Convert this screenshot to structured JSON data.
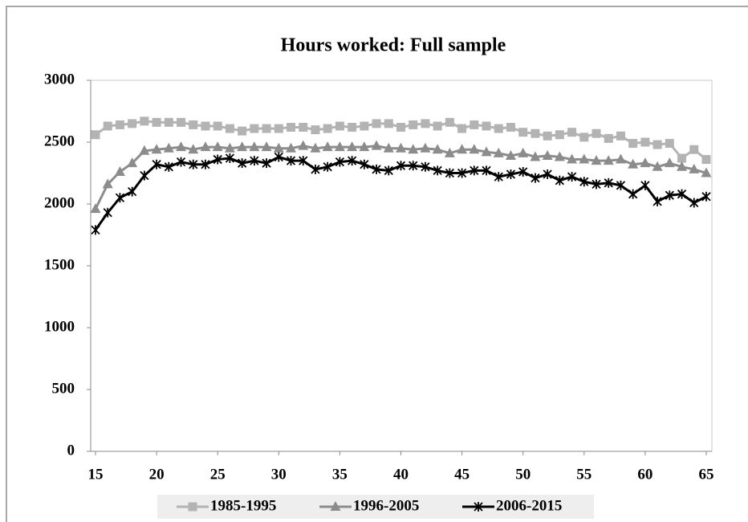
{
  "chart_data": {
    "type": "line",
    "title": "Hours worked:  Full sample",
    "x": [
      15,
      16,
      17,
      18,
      19,
      20,
      21,
      22,
      23,
      24,
      25,
      26,
      27,
      28,
      29,
      30,
      31,
      32,
      33,
      34,
      35,
      36,
      37,
      38,
      39,
      40,
      41,
      42,
      43,
      44,
      45,
      46,
      47,
      48,
      49,
      50,
      51,
      52,
      53,
      54,
      55,
      56,
      57,
      58,
      59,
      60,
      61,
      62,
      63,
      64,
      65
    ],
    "xlim": [
      15,
      65
    ],
    "xticks": [
      15,
      20,
      25,
      30,
      35,
      40,
      45,
      50,
      55,
      60,
      65
    ],
    "ylim": [
      0,
      3000
    ],
    "yticks": [
      0,
      500,
      1000,
      1500,
      2000,
      2500,
      3000
    ],
    "legend": "bottom",
    "series": [
      {
        "name": "1985-1995",
        "color": "#b3b3b3",
        "marker": "square",
        "values": [
          2560,
          2630,
          2640,
          2650,
          2670,
          2660,
          2660,
          2660,
          2640,
          2630,
          2630,
          2610,
          2590,
          2610,
          2610,
          2610,
          2620,
          2620,
          2600,
          2610,
          2630,
          2620,
          2630,
          2650,
          2650,
          2620,
          2640,
          2650,
          2630,
          2660,
          2610,
          2640,
          2630,
          2610,
          2620,
          2580,
          2570,
          2550,
          2560,
          2580,
          2540,
          2570,
          2530,
          2550,
          2490,
          2500,
          2480,
          2490,
          2370,
          2440,
          2360
        ]
      },
      {
        "name": "1996-2005",
        "color": "#8c8c8c",
        "marker": "triangle",
        "values": [
          1960,
          2160,
          2260,
          2330,
          2430,
          2440,
          2450,
          2460,
          2440,
          2460,
          2460,
          2450,
          2460,
          2460,
          2460,
          2450,
          2450,
          2470,
          2450,
          2460,
          2460,
          2460,
          2460,
          2470,
          2450,
          2450,
          2440,
          2450,
          2440,
          2410,
          2440,
          2440,
          2420,
          2410,
          2390,
          2410,
          2380,
          2390,
          2380,
          2360,
          2360,
          2350,
          2350,
          2360,
          2320,
          2330,
          2300,
          2330,
          2300,
          2280,
          2250
        ]
      },
      {
        "name": "2006-2015",
        "color": "#000000",
        "marker": "asterisk",
        "values": [
          1790,
          1930,
          2050,
          2100,
          2230,
          2320,
          2300,
          2340,
          2320,
          2320,
          2360,
          2370,
          2330,
          2350,
          2330,
          2380,
          2350,
          2350,
          2280,
          2300,
          2340,
          2350,
          2320,
          2280,
          2270,
          2310,
          2310,
          2300,
          2270,
          2250,
          2250,
          2270,
          2270,
          2220,
          2240,
          2260,
          2210,
          2240,
          2190,
          2220,
          2180,
          2160,
          2170,
          2150,
          2080,
          2150,
          2020,
          2070,
          2080,
          2010,
          2060
        ]
      }
    ]
  }
}
